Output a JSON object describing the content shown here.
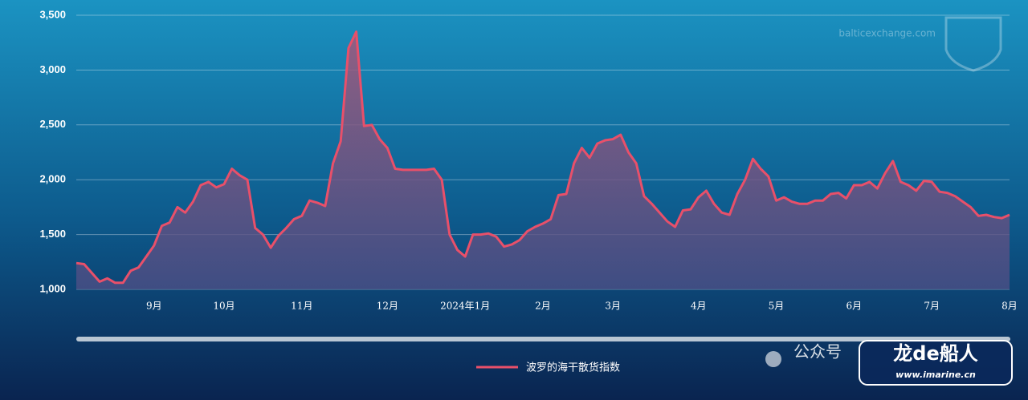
{
  "chart_data": {
    "type": "line",
    "watermark": "balticexchange.com",
    "wechat": "公众号",
    "credit": "龙de船人",
    "credit_url": "www.imarine.cn",
    "categories": [
      null,
      null,
      null,
      null,
      null,
      null,
      null,
      null,
      null,
      null,
      "9月",
      null,
      null,
      null,
      null,
      null,
      null,
      null,
      null,
      "10月",
      null,
      null,
      null,
      null,
      null,
      null,
      null,
      null,
      null,
      "11月",
      null,
      null,
      null,
      null,
      null,
      null,
      null,
      null,
      null,
      null,
      "12月",
      null,
      null,
      null,
      null,
      null,
      null,
      null,
      null,
      null,
      "2024年1月",
      null,
      null,
      null,
      null,
      null,
      null,
      null,
      null,
      null,
      "2月",
      null,
      null,
      null,
      null,
      null,
      null,
      null,
      null,
      "3月",
      null,
      null,
      null,
      null,
      null,
      null,
      null,
      null,
      null,
      null,
      "4月",
      null,
      null,
      null,
      null,
      null,
      null,
      null,
      null,
      null,
      "5月",
      null,
      null,
      null,
      null,
      null,
      null,
      null,
      null,
      null,
      "6月",
      null,
      null,
      null,
      null,
      null,
      null,
      null,
      null,
      null,
      "7月",
      null,
      null,
      null,
      null,
      null,
      null,
      null,
      null,
      null,
      "8月"
    ],
    "series": [
      {
        "name": "波罗的海干散货指数",
        "color": "#e8506a",
        "values": [
          1240,
          1230,
          1150,
          1070,
          1100,
          1060,
          1060,
          1170,
          1200,
          1300,
          1400,
          1580,
          1610,
          1750,
          1700,
          1800,
          1950,
          1980,
          1930,
          1960,
          2100,
          2040,
          2000,
          1560,
          1500,
          1380,
          1490,
          1560,
          1640,
          1670,
          1810,
          1790,
          1760,
          2150,
          2350,
          3200,
          3350,
          2490,
          2500,
          2370,
          2290,
          2100,
          2090,
          2090,
          2090,
          2090,
          2100,
          2000,
          1500,
          1360,
          1300,
          1500,
          1500,
          1510,
          1480,
          1390,
          1410,
          1450,
          1530,
          1570,
          1600,
          1640,
          1860,
          1870,
          2150,
          2290,
          2200,
          2330,
          2360,
          2370,
          2410,
          2250,
          2150,
          1850,
          1780,
          1700,
          1620,
          1570,
          1720,
          1730,
          1840,
          1900,
          1780,
          1700,
          1680,
          1870,
          2000,
          2190,
          2100,
          2030,
          1810,
          1840,
          1800,
          1780,
          1780,
          1810,
          1810,
          1870,
          1880,
          1830,
          1950,
          1950,
          1980,
          1920,
          2060,
          2170,
          1980,
          1950,
          1900,
          1990,
          1980,
          1890,
          1880,
          1850,
          1800,
          1750,
          1670,
          1680,
          1660,
          1650,
          1680
        ]
      }
    ],
    "ylim": [
      1000,
      3500
    ],
    "yticks": [
      {
        "value": 1000,
        "label": "1,000"
      },
      {
        "value": 1500,
        "label": "1,500"
      },
      {
        "value": 2000,
        "label": "2,000"
      },
      {
        "value": 2500,
        "label": "2,500"
      },
      {
        "value": 3000,
        "label": "3,000"
      },
      {
        "value": 3500,
        "label": "3,500"
      }
    ],
    "grid": true
  }
}
